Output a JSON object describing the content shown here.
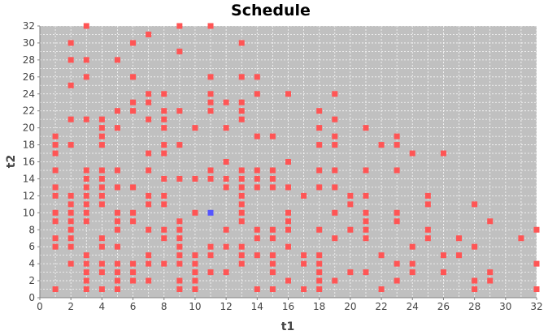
{
  "chart_data": {
    "type": "scatter",
    "title": "Schedule",
    "xlabel": "t1",
    "ylabel": "t2",
    "xlim": [
      0,
      32
    ],
    "ylim": [
      0,
      32
    ],
    "x_ticks": [
      0,
      2,
      4,
      6,
      8,
      10,
      12,
      14,
      16,
      18,
      20,
      22,
      24,
      26,
      28,
      30,
      32
    ],
    "y_ticks": [
      0,
      2,
      4,
      6,
      8,
      10,
      12,
      14,
      16,
      18,
      20,
      22,
      24,
      26,
      28,
      30,
      32
    ],
    "grid": true,
    "plot_background": "#c0c0c0",
    "colors": {
      "primary": "#ff5555",
      "highlight": "#5555ff"
    },
    "series": [
      {
        "color": "#ff5555",
        "points": [
          [
            1,
            1
          ],
          [
            1,
            6
          ],
          [
            1,
            7
          ],
          [
            1,
            9
          ],
          [
            1,
            10
          ],
          [
            1,
            12
          ],
          [
            1,
            13
          ],
          [
            1,
            15
          ],
          [
            1,
            17
          ],
          [
            1,
            18
          ],
          [
            1,
            19
          ],
          [
            2,
            4
          ],
          [
            2,
            6
          ],
          [
            2,
            7
          ],
          [
            2,
            8
          ],
          [
            2,
            9
          ],
          [
            2,
            10
          ],
          [
            2,
            11
          ],
          [
            2,
            12
          ],
          [
            2,
            18
          ],
          [
            2,
            21
          ],
          [
            2,
            25
          ],
          [
            2,
            28
          ],
          [
            2,
            30
          ],
          [
            3,
            1
          ],
          [
            3,
            2
          ],
          [
            3,
            3
          ],
          [
            3,
            4
          ],
          [
            3,
            5
          ],
          [
            3,
            9
          ],
          [
            3,
            10
          ],
          [
            3,
            11
          ],
          [
            3,
            12
          ],
          [
            3,
            13
          ],
          [
            3,
            14
          ],
          [
            3,
            15
          ],
          [
            3,
            21
          ],
          [
            3,
            26
          ],
          [
            3,
            28
          ],
          [
            3,
            32
          ],
          [
            4,
            1
          ],
          [
            4,
            3
          ],
          [
            4,
            4
          ],
          [
            4,
            6
          ],
          [
            4,
            7
          ],
          [
            4,
            11
          ],
          [
            4,
            12
          ],
          [
            4,
            13
          ],
          [
            4,
            14
          ],
          [
            4,
            15
          ],
          [
            4,
            18
          ],
          [
            4,
            19
          ],
          [
            4,
            20
          ],
          [
            4,
            21
          ],
          [
            5,
            1
          ],
          [
            5,
            2
          ],
          [
            5,
            3
          ],
          [
            5,
            4
          ],
          [
            5,
            6
          ],
          [
            5,
            8
          ],
          [
            5,
            9
          ],
          [
            5,
            10
          ],
          [
            5,
            13
          ],
          [
            5,
            15
          ],
          [
            5,
            20
          ],
          [
            5,
            22
          ],
          [
            5,
            28
          ],
          [
            6,
            2
          ],
          [
            6,
            3
          ],
          [
            6,
            4
          ],
          [
            6,
            9
          ],
          [
            6,
            10
          ],
          [
            6,
            13
          ],
          [
            6,
            22
          ],
          [
            6,
            23
          ],
          [
            6,
            26
          ],
          [
            6,
            30
          ],
          [
            7,
            2
          ],
          [
            7,
            4
          ],
          [
            7,
            5
          ],
          [
            7,
            8
          ],
          [
            7,
            11
          ],
          [
            7,
            12
          ],
          [
            7,
            15
          ],
          [
            7,
            17
          ],
          [
            7,
            21
          ],
          [
            7,
            23
          ],
          [
            7,
            24
          ],
          [
            7,
            31
          ],
          [
            8,
            4
          ],
          [
            8,
            7
          ],
          [
            8,
            8
          ],
          [
            8,
            11
          ],
          [
            8,
            12
          ],
          [
            8,
            14
          ],
          [
            8,
            17
          ],
          [
            8,
            18
          ],
          [
            8,
            20
          ],
          [
            8,
            21
          ],
          [
            8,
            22
          ],
          [
            8,
            24
          ],
          [
            9,
            1
          ],
          [
            9,
            2
          ],
          [
            9,
            4
          ],
          [
            9,
            5
          ],
          [
            9,
            6
          ],
          [
            9,
            7
          ],
          [
            9,
            8
          ],
          [
            9,
            9
          ],
          [
            9,
            14
          ],
          [
            9,
            18
          ],
          [
            9,
            22
          ],
          [
            9,
            29
          ],
          [
            9,
            32
          ],
          [
            10,
            1
          ],
          [
            10,
            2
          ],
          [
            10,
            3
          ],
          [
            10,
            4
          ],
          [
            10,
            5
          ],
          [
            10,
            10
          ],
          [
            10,
            14
          ],
          [
            10,
            20
          ],
          [
            11,
            3
          ],
          [
            11,
            5
          ],
          [
            11,
            6
          ],
          [
            11,
            14
          ],
          [
            11,
            15
          ],
          [
            11,
            22
          ],
          [
            11,
            23
          ],
          [
            11,
            24
          ],
          [
            11,
            26
          ],
          [
            11,
            32
          ],
          [
            12,
            3
          ],
          [
            12,
            6
          ],
          [
            12,
            8
          ],
          [
            12,
            13
          ],
          [
            12,
            14
          ],
          [
            12,
            16
          ],
          [
            12,
            20
          ],
          [
            12,
            23
          ],
          [
            13,
            4
          ],
          [
            13,
            5
          ],
          [
            13,
            6
          ],
          [
            13,
            9
          ],
          [
            13,
            10
          ],
          [
            13,
            11
          ],
          [
            13,
            12
          ],
          [
            13,
            13
          ],
          [
            13,
            14
          ],
          [
            13,
            15
          ],
          [
            13,
            21
          ],
          [
            13,
            22
          ],
          [
            13,
            23
          ],
          [
            13,
            26
          ],
          [
            13,
            30
          ],
          [
            14,
            1
          ],
          [
            14,
            5
          ],
          [
            14,
            7
          ],
          [
            14,
            8
          ],
          [
            14,
            13
          ],
          [
            14,
            14
          ],
          [
            14,
            15
          ],
          [
            14,
            19
          ],
          [
            14,
            24
          ],
          [
            14,
            26
          ],
          [
            15,
            1
          ],
          [
            15,
            3
          ],
          [
            15,
            4
          ],
          [
            15,
            5
          ],
          [
            15,
            7
          ],
          [
            15,
            8
          ],
          [
            15,
            13
          ],
          [
            15,
            14
          ],
          [
            15,
            15
          ],
          [
            15,
            19
          ],
          [
            16,
            2
          ],
          [
            16,
            6
          ],
          [
            16,
            8
          ],
          [
            16,
            9
          ],
          [
            16,
            10
          ],
          [
            16,
            13
          ],
          [
            16,
            16
          ],
          [
            16,
            24
          ],
          [
            17,
            1
          ],
          [
            17,
            4
          ],
          [
            17,
            5
          ],
          [
            17,
            12
          ],
          [
            18,
            1
          ],
          [
            18,
            2
          ],
          [
            18,
            3
          ],
          [
            18,
            4
          ],
          [
            18,
            5
          ],
          [
            18,
            8
          ],
          [
            18,
            13
          ],
          [
            18,
            15
          ],
          [
            18,
            18
          ],
          [
            18,
            20
          ],
          [
            18,
            22
          ],
          [
            19,
            2
          ],
          [
            19,
            7
          ],
          [
            19,
            10
          ],
          [
            19,
            13
          ],
          [
            19,
            15
          ],
          [
            19,
            18
          ],
          [
            19,
            19
          ],
          [
            19,
            21
          ],
          [
            19,
            24
          ],
          [
            20,
            3
          ],
          [
            20,
            8
          ],
          [
            20,
            11
          ],
          [
            20,
            12
          ],
          [
            21,
            3
          ],
          [
            21,
            7
          ],
          [
            21,
            8
          ],
          [
            21,
            9
          ],
          [
            21,
            10
          ],
          [
            21,
            12
          ],
          [
            21,
            15
          ],
          [
            21,
            20
          ],
          [
            22,
            1
          ],
          [
            22,
            5
          ],
          [
            22,
            18
          ],
          [
            23,
            2
          ],
          [
            23,
            4
          ],
          [
            23,
            9
          ],
          [
            23,
            10
          ],
          [
            23,
            15
          ],
          [
            23,
            18
          ],
          [
            23,
            19
          ],
          [
            24,
            3
          ],
          [
            24,
            4
          ],
          [
            24,
            6
          ],
          [
            24,
            17
          ],
          [
            25,
            7
          ],
          [
            25,
            8
          ],
          [
            25,
            11
          ],
          [
            25,
            12
          ],
          [
            26,
            3
          ],
          [
            26,
            5
          ],
          [
            26,
            17
          ],
          [
            27,
            5
          ],
          [
            27,
            7
          ],
          [
            28,
            1
          ],
          [
            28,
            2
          ],
          [
            28,
            6
          ],
          [
            28,
            11
          ],
          [
            29,
            2
          ],
          [
            29,
            3
          ],
          [
            29,
            9
          ],
          [
            31,
            7
          ],
          [
            32,
            1
          ],
          [
            32,
            4
          ],
          [
            32,
            8
          ]
        ]
      },
      {
        "color": "#5555ff",
        "points": [
          [
            11,
            10
          ]
        ]
      }
    ]
  }
}
